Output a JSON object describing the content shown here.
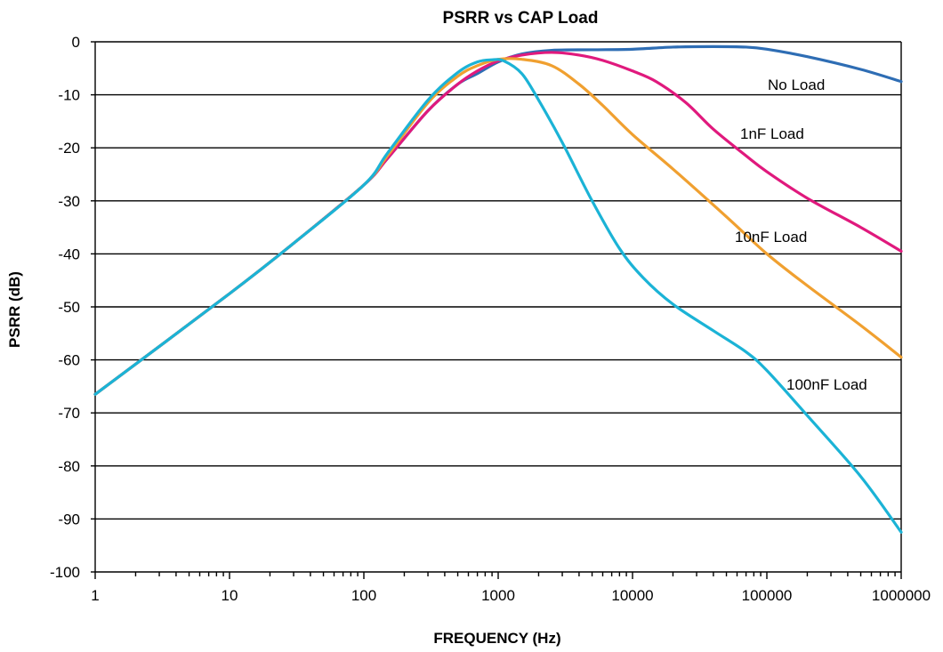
{
  "chart_data": {
    "type": "line",
    "title": "PSRR vs CAP Load",
    "xlabel": "FREQUENCY (Hz)",
    "ylabel": "PSRR (dB)",
    "x_scale": "log",
    "xlim": [
      1,
      1000000
    ],
    "ylim": [
      -100,
      0
    ],
    "x_ticks": [
      "1",
      "10",
      "100",
      "1000",
      "10000",
      "100000",
      "1000000"
    ],
    "y_ticks": [
      "0",
      "-10",
      "-20",
      "-30",
      "-40",
      "-50",
      "-60",
      "-70",
      "-80",
      "-90",
      "-100"
    ],
    "grid": "horizontal",
    "legend": "inline labels",
    "series": [
      {
        "name": "No Load",
        "color": "#2e6db4",
        "points": [
          [
            1,
            -66.5
          ],
          [
            10,
            -47.5
          ],
          [
            30,
            -38
          ],
          [
            100,
            -27
          ],
          [
            150,
            -22
          ],
          [
            300,
            -13
          ],
          [
            500,
            -8
          ],
          [
            700,
            -6
          ],
          [
            1000,
            -3.8
          ],
          [
            1500,
            -2.3
          ],
          [
            2500,
            -1.6
          ],
          [
            5000,
            -1.5
          ],
          [
            10000,
            -1.4
          ],
          [
            20000,
            -1.0
          ],
          [
            40000,
            -0.9
          ],
          [
            70000,
            -1.0
          ],
          [
            100000,
            -1.4
          ],
          [
            200000,
            -2.8
          ],
          [
            500000,
            -5.2
          ],
          [
            1000000,
            -7.5
          ]
        ]
      },
      {
        "name": "1nF Load",
        "color": "#e0197d",
        "points": [
          [
            1,
            -66.5
          ],
          [
            10,
            -47.5
          ],
          [
            30,
            -38
          ],
          [
            100,
            -27
          ],
          [
            150,
            -22
          ],
          [
            300,
            -13
          ],
          [
            500,
            -8
          ],
          [
            700,
            -5.5
          ],
          [
            1000,
            -3.6
          ],
          [
            1500,
            -2.5
          ],
          [
            2500,
            -2.0
          ],
          [
            4000,
            -2.5
          ],
          [
            6000,
            -3.5
          ],
          [
            10000,
            -5.5
          ],
          [
            15000,
            -7.5
          ],
          [
            25000,
            -11.5
          ],
          [
            40000,
            -16.5
          ],
          [
            70000,
            -21.5
          ],
          [
            100000,
            -24.5
          ],
          [
            200000,
            -29.5
          ],
          [
            500000,
            -35
          ],
          [
            1000000,
            -39.5
          ]
        ]
      },
      {
        "name": "10nF Load",
        "color": "#f0a030",
        "points": [
          [
            1,
            -66.5
          ],
          [
            10,
            -47.5
          ],
          [
            30,
            -38
          ],
          [
            100,
            -27
          ],
          [
            150,
            -21.5
          ],
          [
            300,
            -11.5
          ],
          [
            500,
            -6.5
          ],
          [
            700,
            -4.5
          ],
          [
            1000,
            -3.3
          ],
          [
            1500,
            -3.3
          ],
          [
            2500,
            -4.5
          ],
          [
            4000,
            -8
          ],
          [
            6000,
            -12
          ],
          [
            10000,
            -17.5
          ],
          [
            20000,
            -24
          ],
          [
            50000,
            -33
          ],
          [
            100000,
            -40
          ],
          [
            200000,
            -46
          ],
          [
            500000,
            -53.5
          ],
          [
            1000000,
            -59.5
          ]
        ]
      },
      {
        "name": "100nF Load",
        "color": "#1bb3d6",
        "points": [
          [
            1,
            -66.5
          ],
          [
            10,
            -47.5
          ],
          [
            30,
            -38
          ],
          [
            100,
            -27
          ],
          [
            150,
            -21
          ],
          [
            300,
            -11
          ],
          [
            500,
            -5.8
          ],
          [
            700,
            -3.8
          ],
          [
            900,
            -3.4
          ],
          [
            1100,
            -3.6
          ],
          [
            1500,
            -6
          ],
          [
            2000,
            -11
          ],
          [
            3000,
            -19
          ],
          [
            5000,
            -30
          ],
          [
            8000,
            -39
          ],
          [
            12000,
            -44.5
          ],
          [
            20000,
            -49.5
          ],
          [
            40000,
            -54.5
          ],
          [
            70000,
            -58.5
          ],
          [
            100000,
            -62
          ],
          [
            200000,
            -70.5
          ],
          [
            500000,
            -82
          ],
          [
            1000000,
            -92.5
          ]
        ]
      }
    ],
    "labels": {
      "no_load": "No Load",
      "nf1": "1nF Load",
      "nf10": "10nF Load",
      "nf100": "100nF Load"
    }
  }
}
